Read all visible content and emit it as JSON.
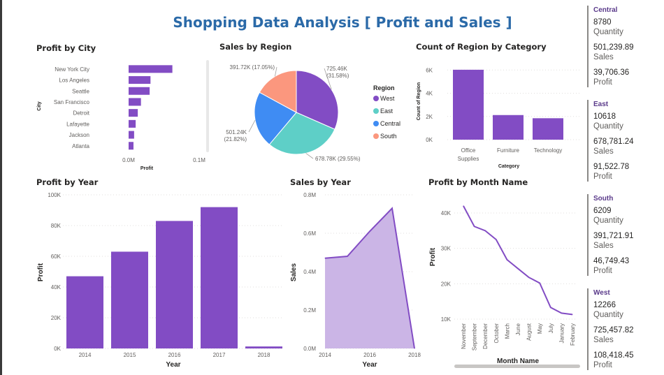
{
  "title": "Shopping Data Analysis [ Profit and Sales ]",
  "colors": {
    "bar": "#824cc4",
    "area": "#cbb5e6",
    "west": "#824cc4",
    "east": "#5ecfc7",
    "central": "#3f8cf3",
    "south": "#fb977e"
  },
  "panels": {
    "profit_by_city": "Profit by City",
    "sales_by_region": "Sales by Region",
    "count_region_category": "Count of Region by Category",
    "profit_by_year": "Profit by Year",
    "sales_by_year": "Sales by Year",
    "profit_by_month": "Profit by Month Name"
  },
  "chart_data": [
    {
      "type": "bar",
      "orientation": "horizontal",
      "title": "Profit by City",
      "categories": [
        "New York City",
        "Los Angeles",
        "Seattle",
        "San Francisco",
        "Detroit",
        "Lafayette",
        "Jackson",
        "Atlanta"
      ],
      "values": [
        62000,
        31000,
        29800,
        17500,
        13000,
        10000,
        7800,
        6900
      ],
      "xlabel": "Profit",
      "ylabel": "City",
      "xlim": [
        0,
        100000
      ],
      "xticks": [
        "0.0M",
        "0.1M"
      ]
    },
    {
      "type": "pie",
      "title": "Sales by Region",
      "legend_title": "Region",
      "categories": [
        "West",
        "East",
        "Central",
        "South"
      ],
      "values": [
        725.46,
        678.78,
        501.24,
        391.72
      ],
      "labels": [
        "725.46K (31.58%)",
        "678.78K (29.55%)",
        "501.24K (21.82%)",
        "391.72K (17.05%)"
      ]
    },
    {
      "type": "bar",
      "title": "Count of Region by Category",
      "categories": [
        "Office Supplies",
        "Furniture",
        "Technology"
      ],
      "values": [
        6026,
        2121,
        1847
      ],
      "xlabel": "Category",
      "ylabel": "Count of Region",
      "ylim": [
        0,
        6500
      ],
      "yticks": [
        "0K",
        "2K",
        "4K",
        "6K"
      ]
    },
    {
      "type": "bar",
      "title": "Profit by Year",
      "categories": [
        "2014",
        "2015",
        "2016",
        "2017",
        "2018"
      ],
      "values": [
        47000,
        63000,
        83000,
        92000,
        1300
      ],
      "xlabel": "Year",
      "ylabel": "Profit",
      "ylim": [
        0,
        100000
      ],
      "yticks": [
        "0K",
        "20K",
        "40K",
        "60K",
        "80K",
        "100K"
      ]
    },
    {
      "type": "area",
      "title": "Sales by Year",
      "x": [
        2014,
        2015,
        2016,
        2017,
        2018
      ],
      "values": [
        0.47,
        0.48,
        0.61,
        0.73,
        0.0
      ],
      "xlabel": "Year",
      "ylabel": "Sales",
      "ylim": [
        0,
        0.8
      ],
      "yticks": [
        "0.0M",
        "0.2M",
        "0.4M",
        "0.6M",
        "0.8M"
      ],
      "xticks": [
        "2014",
        "2016",
        "2018"
      ]
    },
    {
      "type": "line",
      "title": "Profit by Month Name",
      "categories": [
        "November",
        "September",
        "December",
        "October",
        "March",
        "June",
        "August",
        "May",
        "July",
        "January",
        "February"
      ],
      "values": [
        42000,
        36200,
        35000,
        32500,
        26800,
        24300,
        21800,
        20200,
        13300,
        11700,
        11300
      ],
      "xlabel": "Month Name",
      "ylabel": "Profit",
      "ylim": [
        8000,
        44000
      ],
      "yticks": [
        "10K",
        "20K",
        "30K",
        "40K"
      ]
    }
  ],
  "cards": [
    {
      "region": "Central",
      "quantity": "8780",
      "quantity_label": "Quantity",
      "sales": "501,239.89",
      "sales_label": "Sales",
      "profit": "39,706.36",
      "profit_label": "Profit"
    },
    {
      "region": "East",
      "quantity": "10618",
      "quantity_label": "Quantity",
      "sales": "678,781.24",
      "sales_label": "Sales",
      "profit": "91,522.78",
      "profit_label": "Profit"
    },
    {
      "region": "South",
      "quantity": "6209",
      "quantity_label": "Quantity",
      "sales": "391,721.91",
      "sales_label": "Sales",
      "profit": "46,749.43",
      "profit_label": "Profit"
    },
    {
      "region": "West",
      "quantity": "12266",
      "quantity_label": "Quantity",
      "sales": "725,457.82",
      "sales_label": "Sales",
      "profit": "108,418.45",
      "profit_label": "Profit"
    }
  ]
}
